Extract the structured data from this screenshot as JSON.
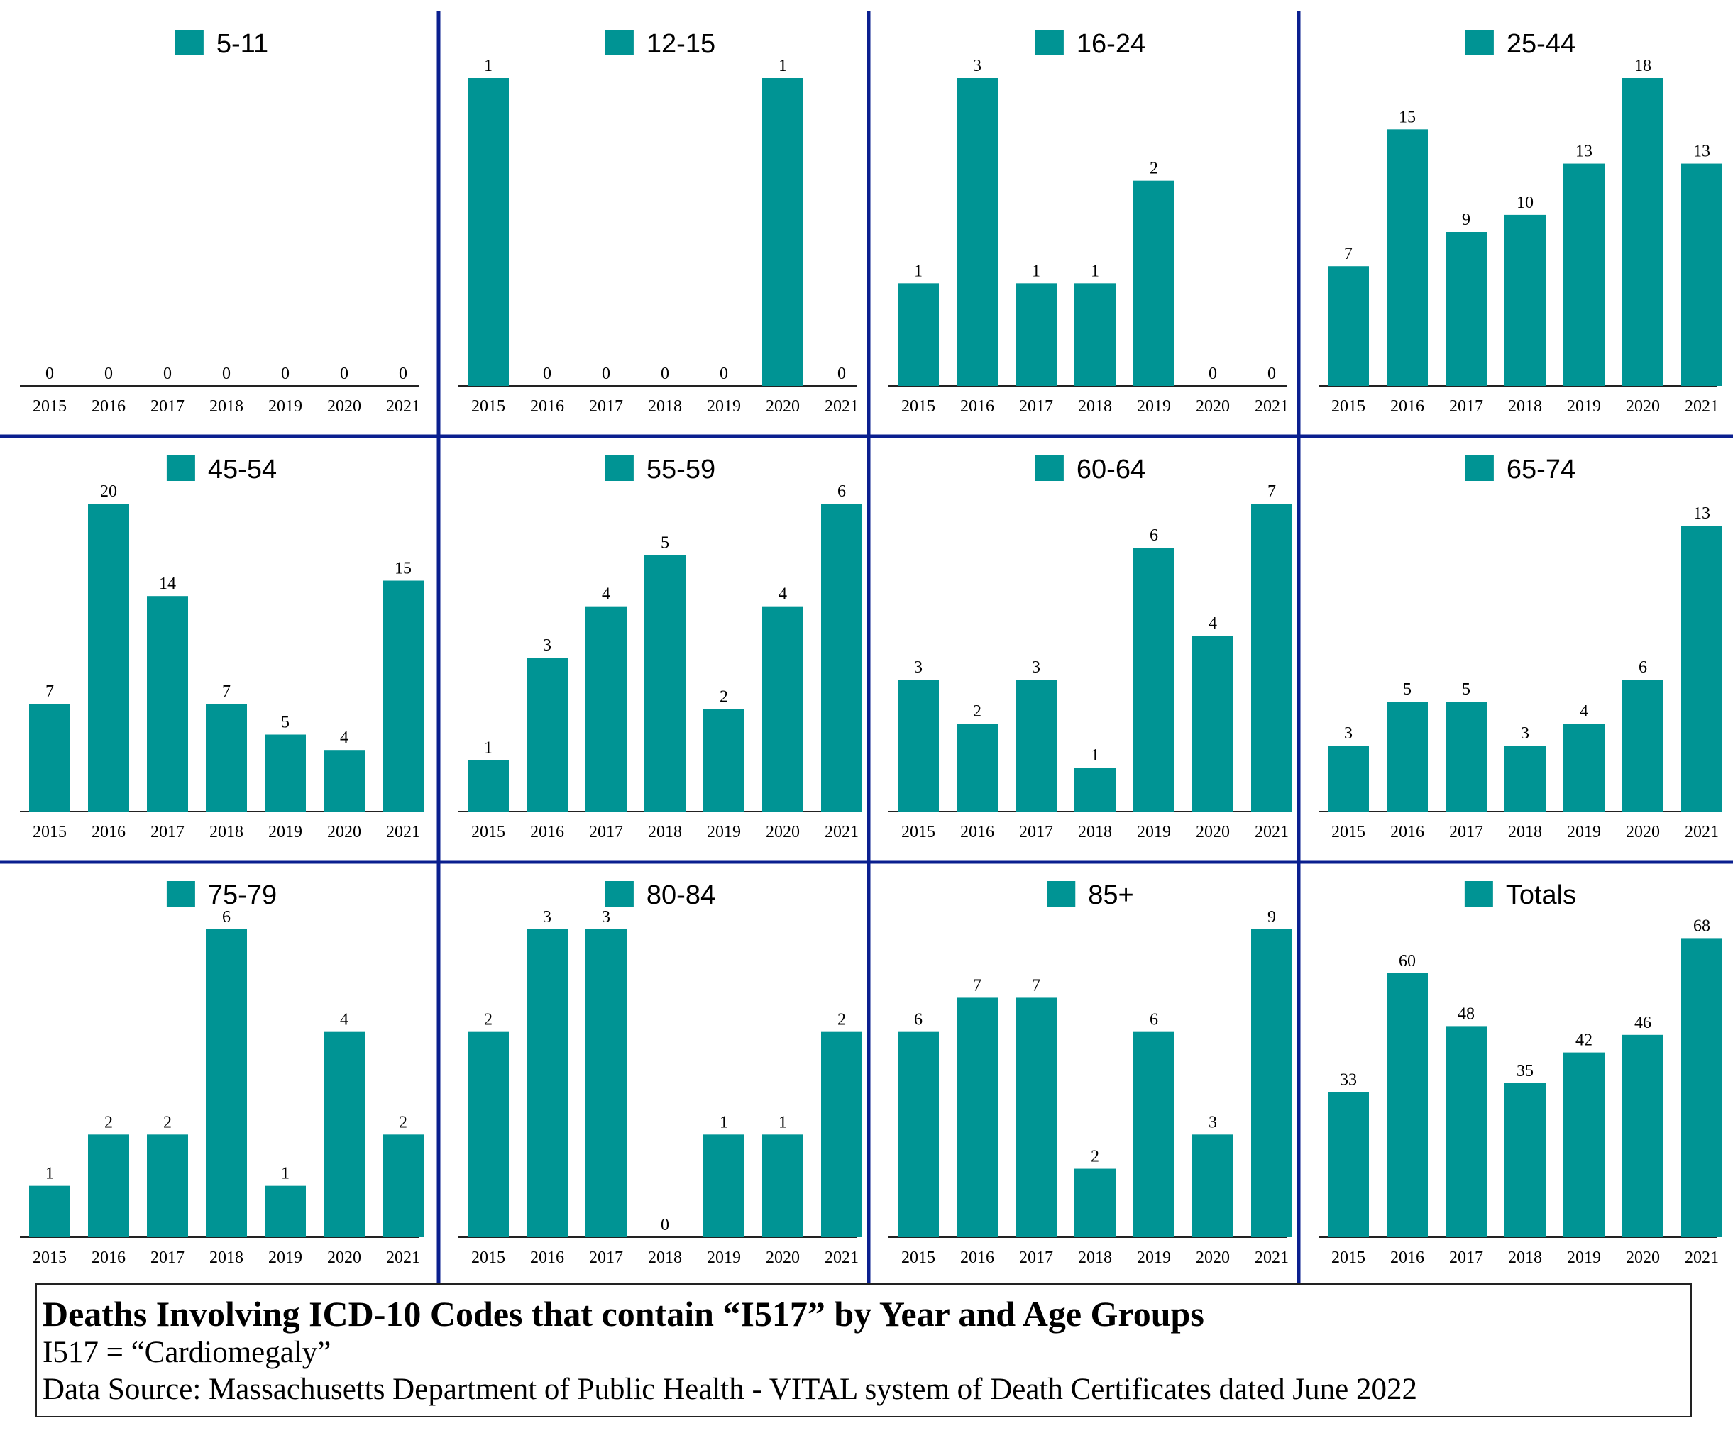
{
  "colors": {
    "bar": "#009494",
    "divider": "#0a1f8f",
    "axis": "#222222",
    "text": "#000000"
  },
  "chart_data": [
    {
      "type": "bar",
      "name": "5-11",
      "categories": [
        "2015",
        "2016",
        "2017",
        "2018",
        "2019",
        "2020",
        "2021"
      ],
      "values": [
        0,
        0,
        0,
        0,
        0,
        0,
        0
      ],
      "ymax": 1
    },
    {
      "type": "bar",
      "name": "12-15",
      "categories": [
        "2015",
        "2016",
        "2017",
        "2018",
        "2019",
        "2020",
        "2021"
      ],
      "values": [
        1,
        0,
        0,
        0,
        0,
        1,
        0
      ],
      "ymax": 1
    },
    {
      "type": "bar",
      "name": "16-24",
      "categories": [
        "2015",
        "2016",
        "2017",
        "2018",
        "2019",
        "2020",
        "2021"
      ],
      "values": [
        1,
        3,
        1,
        1,
        2,
        0,
        0
      ],
      "ymax": 3
    },
    {
      "type": "bar",
      "name": "25-44",
      "categories": [
        "2015",
        "2016",
        "2017",
        "2018",
        "2019",
        "2020",
        "2021"
      ],
      "values": [
        7,
        15,
        9,
        10,
        13,
        18,
        13
      ],
      "ymax": 18
    },
    {
      "type": "bar",
      "name": "45-54",
      "categories": [
        "2015",
        "2016",
        "2017",
        "2018",
        "2019",
        "2020",
        "2021"
      ],
      "values": [
        7,
        20,
        14,
        7,
        5,
        4,
        15
      ],
      "ymax": 20
    },
    {
      "type": "bar",
      "name": "55-59",
      "categories": [
        "2015",
        "2016",
        "2017",
        "2018",
        "2019",
        "2020",
        "2021"
      ],
      "values": [
        1,
        3,
        4,
        5,
        2,
        4,
        6
      ],
      "ymax": 6
    },
    {
      "type": "bar",
      "name": "60-64",
      "categories": [
        "2015",
        "2016",
        "2017",
        "2018",
        "2019",
        "2020",
        "2021"
      ],
      "values": [
        3,
        2,
        3,
        1,
        6,
        4,
        7
      ],
      "ymax": 7
    },
    {
      "type": "bar",
      "name": "65-74",
      "categories": [
        "2015",
        "2016",
        "2017",
        "2018",
        "2019",
        "2020",
        "2021"
      ],
      "values": [
        3,
        5,
        5,
        3,
        4,
        6,
        13
      ],
      "ymax": 14
    },
    {
      "type": "bar",
      "name": "75-79",
      "categories": [
        "2015",
        "2016",
        "2017",
        "2018",
        "2019",
        "2020",
        "2021"
      ],
      "values": [
        1,
        2,
        2,
        6,
        1,
        4,
        2
      ],
      "ymax": 6
    },
    {
      "type": "bar",
      "name": "80-84",
      "categories": [
        "2015",
        "2016",
        "2017",
        "2018",
        "2019",
        "2020",
        "2021"
      ],
      "values": [
        2,
        3,
        3,
        0,
        1,
        1,
        2
      ],
      "ymax": 3
    },
    {
      "type": "bar",
      "name": "85+",
      "categories": [
        "2015",
        "2016",
        "2017",
        "2018",
        "2019",
        "2020",
        "2021"
      ],
      "values": [
        6,
        7,
        7,
        2,
        6,
        3,
        9
      ],
      "ymax": 9
    },
    {
      "type": "bar",
      "name": "Totals",
      "categories": [
        "2015",
        "2016",
        "2017",
        "2018",
        "2019",
        "2020",
        "2021"
      ],
      "values": [
        33,
        60,
        48,
        35,
        42,
        46,
        68
      ],
      "ymax": 70
    }
  ],
  "caption": {
    "title": "Deaths Involving ICD-10 Codes that contain “I517” by Year and Age Groups",
    "definition": "I517 = “Cardiomegaly”",
    "source": "Data Source:  Massachusetts Department of Public Health - VITAL system of Death Certificates dated June 2022"
  }
}
